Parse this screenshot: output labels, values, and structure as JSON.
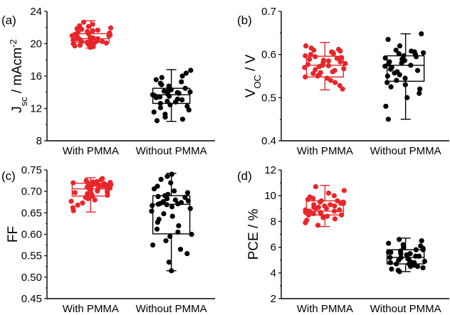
{
  "chart_data": [
    {
      "type": "box",
      "panel_label": "(a)",
      "ylabel_main": "J",
      "ylabel_sub": "sc",
      "ylabel_rest": " / mAcm",
      "ylabel_sup": "-2",
      "ylim": [
        8,
        26
      ],
      "yticks": [
        "8",
        "12",
        "16",
        "20",
        "24"
      ],
      "categories": [
        "With PMMA",
        "Without PMMA"
      ],
      "series": [
        {
          "color": "#e8262a",
          "box": {
            "min": 20.9,
            "q1": 21.7,
            "median": 22.2,
            "q3": 22.9,
            "max": 24.7
          },
          "points": [
            21.0,
            21.1,
            21.2,
            21.3,
            21.4,
            21.4,
            21.5,
            21.6,
            21.6,
            21.7,
            21.8,
            21.8,
            21.9,
            22.0,
            22.0,
            22.1,
            22.2,
            22.2,
            22.3,
            22.4,
            22.5,
            22.6,
            22.6,
            22.7,
            22.8,
            22.9,
            23.0,
            23.1,
            23.2,
            23.3,
            23.4,
            23.5,
            23.6,
            23.7,
            23.9,
            24.0,
            24.2,
            24.5
          ]
        },
        {
          "color": "#000000",
          "box": {
            "min": 10.7,
            "q1": 13.2,
            "median": 14.4,
            "q3": 15.3,
            "max": 17.9
          },
          "points": [
            10.8,
            11.0,
            11.3,
            11.7,
            12.0,
            12.3,
            12.6,
            12.8,
            13.0,
            13.2,
            13.4,
            13.5,
            13.7,
            13.8,
            14.0,
            14.1,
            14.2,
            14.3,
            14.4,
            14.5,
            14.6,
            14.7,
            14.8,
            14.9,
            15.0,
            15.1,
            15.2,
            15.3,
            15.4,
            15.6,
            15.8,
            16.0,
            16.2,
            16.5,
            16.8,
            17.0,
            17.4,
            17.8
          ]
        }
      ]
    },
    {
      "type": "box",
      "panel_label": "(b)",
      "ylabel_main": "V",
      "ylabel_sub": "OC",
      "ylabel_rest": " / V",
      "ylabel_sup": "",
      "ylim": [
        0.4,
        0.7
      ],
      "yticks": [
        "0.4",
        "0.5",
        "0.6",
        "0.7"
      ],
      "categories": [
        "With PMMA",
        "Without PMMA"
      ],
      "series": [
        {
          "color": "#e8262a",
          "box": {
            "min": 0.518,
            "q1": 0.548,
            "median": 0.575,
            "q3": 0.596,
            "max": 0.628
          },
          "points": [
            0.52,
            0.528,
            0.535,
            0.54,
            0.545,
            0.548,
            0.55,
            0.553,
            0.556,
            0.558,
            0.56,
            0.563,
            0.565,
            0.567,
            0.57,
            0.572,
            0.574,
            0.575,
            0.577,
            0.579,
            0.581,
            0.583,
            0.585,
            0.587,
            0.589,
            0.591,
            0.593,
            0.595,
            0.597,
            0.6,
            0.602,
            0.604,
            0.606,
            0.608,
            0.61,
            0.612,
            0.615,
            0.62
          ]
        },
        {
          "color": "#000000",
          "box": {
            "min": 0.45,
            "q1": 0.538,
            "median": 0.575,
            "q3": 0.597,
            "max": 0.648
          },
          "points": [
            0.45,
            0.48,
            0.5,
            0.51,
            0.52,
            0.525,
            0.53,
            0.535,
            0.54,
            0.545,
            0.55,
            0.553,
            0.557,
            0.56,
            0.563,
            0.566,
            0.57,
            0.573,
            0.575,
            0.578,
            0.58,
            0.583,
            0.586,
            0.589,
            0.592,
            0.595,
            0.597,
            0.6,
            0.602,
            0.604,
            0.606,
            0.608,
            0.61,
            0.62,
            0.635,
            0.648
          ]
        }
      ]
    },
    {
      "type": "box",
      "panel_label": "(c)",
      "ylabel_main": "FF",
      "ylabel_sub": "",
      "ylabel_rest": "",
      "ylabel_sup": "",
      "ylim": [
        0.45,
        0.75
      ],
      "yticks": [
        "0.45",
        "0.50",
        "0.55",
        "0.60",
        "0.65",
        "0.70",
        "0.75"
      ],
      "categories": [
        "With PMMA",
        "Without PMMA"
      ],
      "series": [
        {
          "color": "#e8262a",
          "box": {
            "min": 0.652,
            "q1": 0.689,
            "median": 0.706,
            "q3": 0.719,
            "max": 0.732
          },
          "points": [
            0.655,
            0.662,
            0.668,
            0.673,
            0.677,
            0.68,
            0.683,
            0.686,
            0.689,
            0.691,
            0.693,
            0.695,
            0.697,
            0.699,
            0.701,
            0.703,
            0.705,
            0.706,
            0.707,
            0.708,
            0.709,
            0.71,
            0.711,
            0.712,
            0.713,
            0.714,
            0.715,
            0.716,
            0.717,
            0.718,
            0.719,
            0.72,
            0.721,
            0.722,
            0.723,
            0.725,
            0.727,
            0.73
          ]
        },
        {
          "color": "#000000",
          "box": {
            "min": 0.515,
            "q1": 0.601,
            "median": 0.67,
            "q3": 0.69,
            "max": 0.742
          },
          "points": [
            0.515,
            0.535,
            0.555,
            0.565,
            0.575,
            0.585,
            0.595,
            0.6,
            0.605,
            0.612,
            0.62,
            0.628,
            0.635,
            0.642,
            0.648,
            0.654,
            0.66,
            0.664,
            0.667,
            0.669,
            0.67,
            0.671,
            0.672,
            0.674,
            0.676,
            0.678,
            0.68,
            0.683,
            0.686,
            0.688,
            0.69,
            0.693,
            0.697,
            0.701,
            0.706,
            0.712,
            0.72,
            0.728,
            0.735,
            0.74
          ]
        }
      ]
    },
    {
      "type": "box",
      "panel_label": "(d)",
      "ylabel_main": "PCE / %",
      "ylabel_sub": "",
      "ylabel_rest": "",
      "ylabel_sup": "",
      "ylim": [
        2,
        12
      ],
      "yticks": [
        "2",
        "4",
        "6",
        "8",
        "10",
        "12"
      ],
      "categories": [
        "With PMMA",
        "Without PMMA"
      ],
      "series": [
        {
          "color": "#e8262a",
          "box": {
            "min": 7.6,
            "q1": 8.5,
            "median": 8.8,
            "q3": 9.6,
            "max": 10.8
          },
          "points": [
            7.7,
            7.9,
            8.1,
            8.2,
            8.3,
            8.4,
            8.5,
            8.5,
            8.6,
            8.6,
            8.7,
            8.7,
            8.8,
            8.8,
            8.9,
            8.9,
            9.0,
            9.0,
            9.1,
            9.1,
            9.2,
            9.2,
            9.3,
            9.3,
            9.4,
            9.4,
            9.5,
            9.5,
            9.6,
            9.6,
            9.7,
            9.8,
            9.9,
            10.0,
            10.2,
            10.4,
            10.7
          ]
        },
        {
          "color": "#000000",
          "box": {
            "min": 4.1,
            "q1": 4.7,
            "median": 5.2,
            "q3": 5.8,
            "max": 6.7
          },
          "points": [
            4.1,
            4.2,
            4.3,
            4.4,
            4.5,
            4.5,
            4.6,
            4.7,
            4.7,
            4.8,
            4.8,
            4.9,
            4.9,
            5.0,
            5.0,
            5.1,
            5.1,
            5.2,
            5.2,
            5.3,
            5.3,
            5.4,
            5.4,
            5.5,
            5.5,
            5.6,
            5.6,
            5.7,
            5.8,
            5.8,
            5.9,
            6.0,
            6.1,
            6.2,
            6.3,
            6.5,
            6.6
          ]
        }
      ]
    }
  ]
}
